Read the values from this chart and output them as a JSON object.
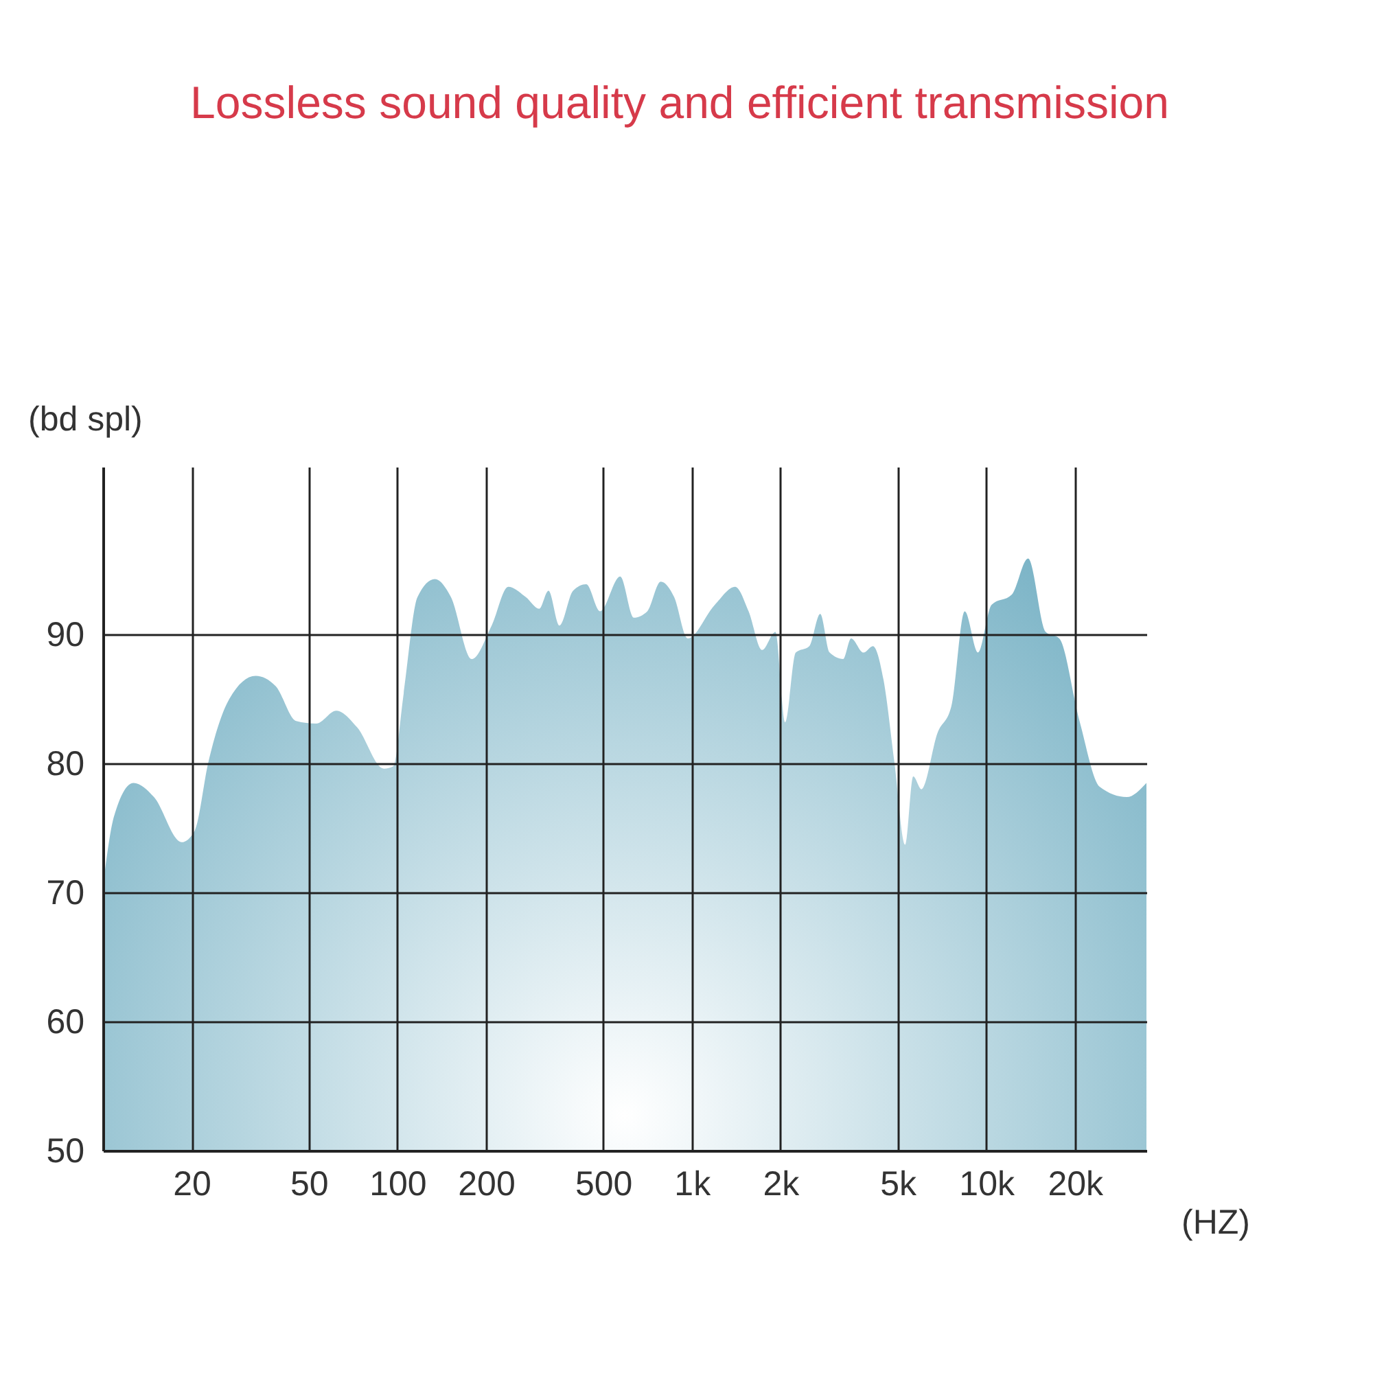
{
  "chart_data": {
    "type": "area",
    "title": "Lossless sound quality and efficient transmission",
    "xlabel": "(HZ)",
    "ylabel": "(bd spl)",
    "log": "x",
    "color": "#6aaabf",
    "x": [
      10,
      10.9,
      12.7,
      14.9,
      18.5,
      20.5,
      22.8,
      26.7,
      33,
      38.6,
      45.3,
      53,
      62,
      73,
      90,
      97,
      105,
      117,
      134,
      152,
      179,
      209,
      238,
      273,
      303,
      326,
      355,
      395,
      438,
      488,
      571,
      635,
      706,
      784,
      871,
      968,
      1197,
      1403,
      1559,
      1733,
      1923,
      2073,
      2254,
      2506,
      2729,
      2938,
      3266,
      3475,
      3828,
      4121,
      4477,
      4875,
      5309,
      5649,
      6026,
      6839,
      7603,
      8451,
      9376,
      10423,
      12218,
      13869,
      15922,
      17698,
      20734,
      24266,
      29985,
      35000
    ],
    "values": [
      70.5,
      75.9,
      78.5,
      77.4,
      73.9,
      74.8,
      80.1,
      84.9,
      86.8,
      86.0,
      83.3,
      83.1,
      84.1,
      82.8,
      79.6,
      79.8,
      85.4,
      92.9,
      94.3,
      92.9,
      88.1,
      90.7,
      93.7,
      92.9,
      92.0,
      93.4,
      90.7,
      93.4,
      93.9,
      91.8,
      94.5,
      91.3,
      91.8,
      94.1,
      92.9,
      89.7,
      92.3,
      93.7,
      91.8,
      88.8,
      90.2,
      83.2,
      88.6,
      89.1,
      91.6,
      88.6,
      88.1,
      89.7,
      88.6,
      89.1,
      86.5,
      80.1,
      73.7,
      79.0,
      78.0,
      82.4,
      84.4,
      91.8,
      88.6,
      92.3,
      93.1,
      95.9,
      90.2,
      89.7,
      83.3,
      78.2,
      77.4,
      78.5
    ],
    "xlim": [
      10,
      35000
    ],
    "xticks": [
      {
        "value": 20,
        "label": "20"
      },
      {
        "value": 50,
        "label": "50"
      },
      {
        "value": 100,
        "label": "100"
      },
      {
        "value": 200,
        "label": "200"
      },
      {
        "value": 500,
        "label": "500"
      },
      {
        "value": 1000,
        "label": "1k"
      },
      {
        "value": 2000,
        "label": "2k"
      },
      {
        "value": 5000,
        "label": "5k"
      },
      {
        "value": 10000,
        "label": "10k"
      },
      {
        "value": 20000,
        "label": "20k"
      }
    ],
    "ylim": [
      50,
      103
    ],
    "yticks": [
      50,
      60,
      70,
      80,
      90
    ],
    "grid": true
  }
}
